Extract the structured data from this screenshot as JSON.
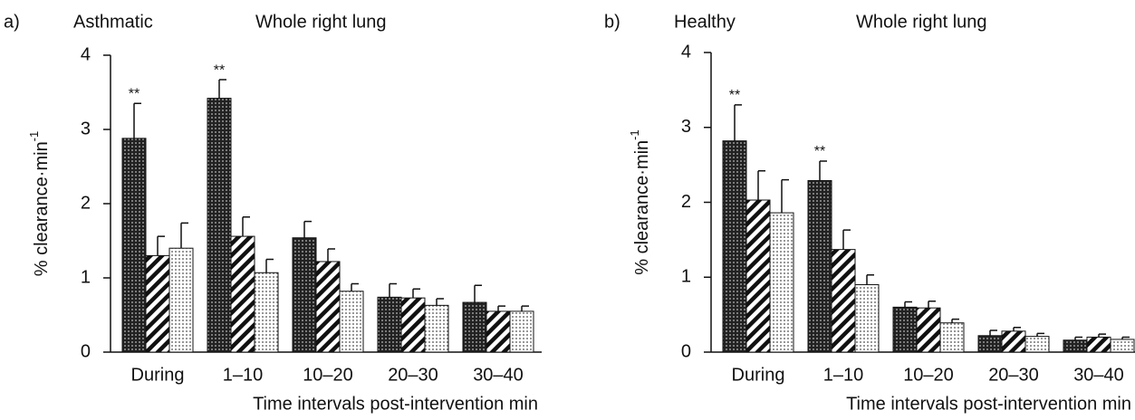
{
  "chart_data": [
    {
      "type": "bar",
      "panel": "a)",
      "subtitle": "Asthmatic",
      "title": "Whole right lung",
      "ylabel": "% clearance·min",
      "ylabel_sup": "-1",
      "xlabel": "Time intervals post-intervention  min",
      "categories": [
        "During",
        "1–10",
        "10–20",
        "20–30",
        "30–40"
      ],
      "series": [
        {
          "pattern": "dense-dots",
          "color": "#333333",
          "values": [
            2.88,
            3.42,
            1.54,
            0.74,
            0.67
          ],
          "errors": [
            0.47,
            0.25,
            0.22,
            0.18,
            0.23
          ]
        },
        {
          "pattern": "hatch",
          "color": "#111111",
          "values": [
            1.3,
            1.56,
            1.22,
            0.73,
            0.55
          ],
          "errors": [
            0.26,
            0.26,
            0.17,
            0.12,
            0.07
          ]
        },
        {
          "pattern": "light-dots",
          "color": "#888888",
          "values": [
            1.4,
            1.07,
            0.82,
            0.63,
            0.55
          ],
          "errors": [
            0.34,
            0.18,
            0.1,
            0.09,
            0.07
          ]
        }
      ],
      "annotations": [
        "**",
        "**"
      ],
      "ylim": [
        0,
        4
      ],
      "yticks": [
        0,
        1,
        2,
        3,
        4
      ]
    },
    {
      "type": "bar",
      "panel": "b)",
      "subtitle": "Healthy",
      "title": "Whole right lung",
      "ylabel": "% clearance·min",
      "ylabel_sup": "-1",
      "xlabel": "Time intervals post-intervention  min",
      "categories": [
        "During",
        "1–10",
        "10–20",
        "20–30",
        "30–40"
      ],
      "series": [
        {
          "pattern": "dense-dots",
          "color": "#333333",
          "values": [
            2.82,
            2.29,
            0.6,
            0.22,
            0.16
          ],
          "errors": [
            0.48,
            0.26,
            0.07,
            0.07,
            0.04
          ]
        },
        {
          "pattern": "hatch",
          "color": "#111111",
          "values": [
            2.03,
            1.37,
            0.59,
            0.28,
            0.2
          ],
          "errors": [
            0.39,
            0.26,
            0.09,
            0.05,
            0.04
          ]
        },
        {
          "pattern": "light-dots",
          "color": "#888888",
          "values": [
            1.86,
            0.9,
            0.39,
            0.21,
            0.17
          ],
          "errors": [
            0.44,
            0.13,
            0.05,
            0.04,
            0.03
          ]
        }
      ],
      "annotations": [
        "**",
        "**"
      ],
      "ylim": [
        0,
        4
      ],
      "yticks": [
        0,
        1,
        2,
        3,
        4
      ]
    }
  ]
}
